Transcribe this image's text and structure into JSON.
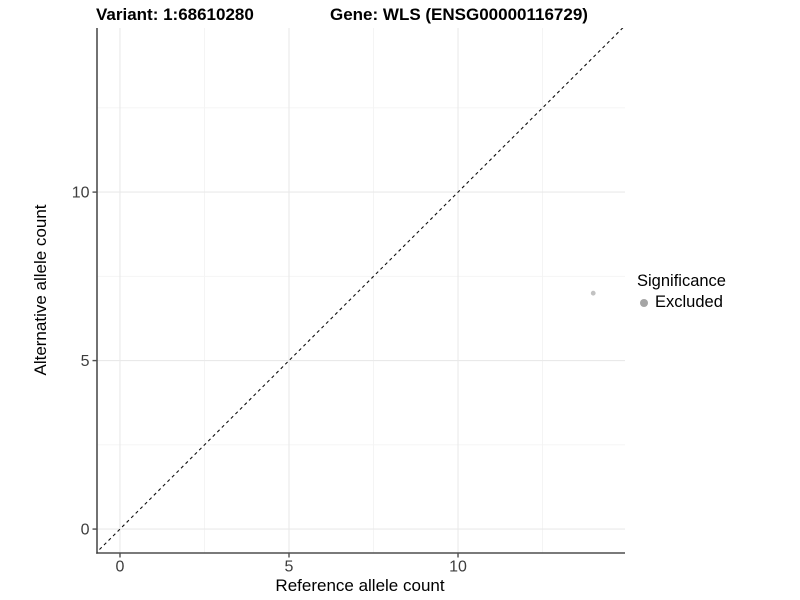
{
  "chart_data": {
    "type": "scatter",
    "title_left": "Variant: 1:68610280",
    "title_right": "Gene: WLS (ENSG00000116729)",
    "xlabel": "Reference allele count",
    "ylabel": "Alternative allele count",
    "xlim": [
      -0.68,
      14.94
    ],
    "ylim": [
      -0.71,
      14.87
    ],
    "x_ticks": [
      0,
      5,
      10
    ],
    "y_ticks": [
      0,
      5,
      10
    ],
    "x_minor_ticks": [
      2.5,
      7.5,
      12.5
    ],
    "y_minor_ticks": [
      2.5,
      7.5,
      12.5
    ],
    "grid": "on",
    "identity_line": {
      "slope": 1,
      "intercept": 0,
      "style": "dashed",
      "color": "#111111"
    },
    "points": [
      {
        "x": 14,
        "y": 7,
        "series": "Excluded",
        "color": "#c2c2c2",
        "radius_px": 2.4
      }
    ],
    "legend": {
      "position": "right",
      "title": "Significance",
      "entries": [
        {
          "label": "Excluded",
          "color": "#a5a5a5"
        }
      ]
    },
    "colors": {
      "panel_background": "#ffffff",
      "grid_major": "#e9e9e9",
      "grid_minor": "#f3f3f3",
      "axis_line": "#4f4f4f",
      "tick_mark": "#4f4f4f",
      "tick_text": "#3d3d3d",
      "title_text": "#000000"
    }
  }
}
